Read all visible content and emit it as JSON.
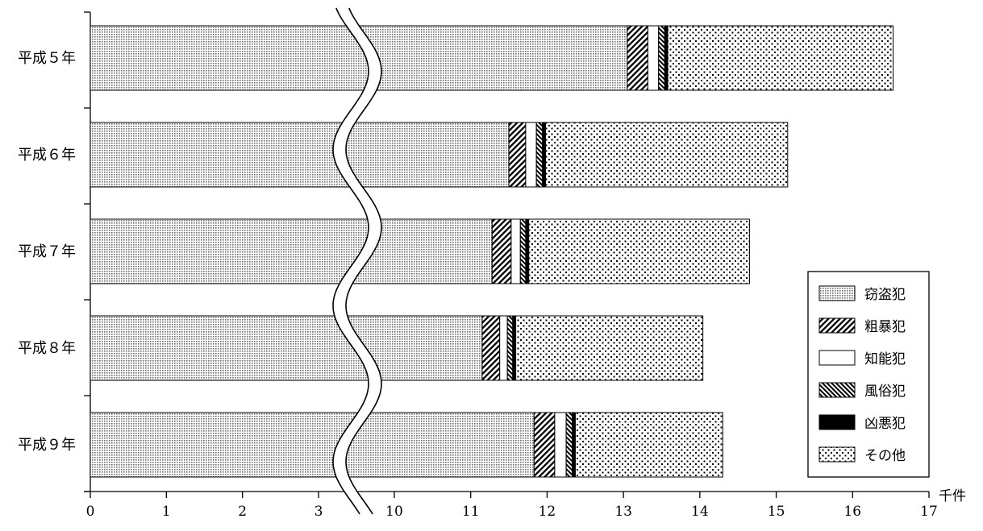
{
  "chart_data": {
    "type": "bar",
    "orientation": "horizontal",
    "stacked": true,
    "axis_break": {
      "after_tick": "3",
      "before_tick": "10"
    },
    "x_unit": "千件",
    "x_ticks": [
      "0",
      "1",
      "2",
      "3",
      "10",
      "11",
      "12",
      "13",
      "14",
      "15",
      "16",
      "17"
    ],
    "categories": [
      "平成５年",
      "平成６年",
      "平成７年",
      "平成８年",
      "平成９年"
    ],
    "series": [
      {
        "name": "窃盗犯",
        "values": [
          13.05,
          11.5,
          11.28,
          11.15,
          11.83
        ],
        "pattern": "fine-dots"
      },
      {
        "name": "粗暴犯",
        "values": [
          0.27,
          0.22,
          0.25,
          0.23,
          0.27
        ],
        "pattern": "diag-right"
      },
      {
        "name": "知能犯",
        "values": [
          0.14,
          0.14,
          0.12,
          0.1,
          0.15
        ],
        "pattern": "white"
      },
      {
        "name": "風俗犯",
        "values": [
          0.08,
          0.08,
          0.07,
          0.07,
          0.08
        ],
        "pattern": "diag-left"
      },
      {
        "name": "凶悪犯",
        "values": [
          0.04,
          0.04,
          0.04,
          0.04,
          0.04
        ],
        "pattern": "black"
      },
      {
        "name": "その他",
        "values": [
          2.95,
          3.17,
          2.89,
          2.45,
          1.93
        ],
        "pattern": "coarse-dots"
      }
    ],
    "legend_position": "right",
    "grid": false
  }
}
